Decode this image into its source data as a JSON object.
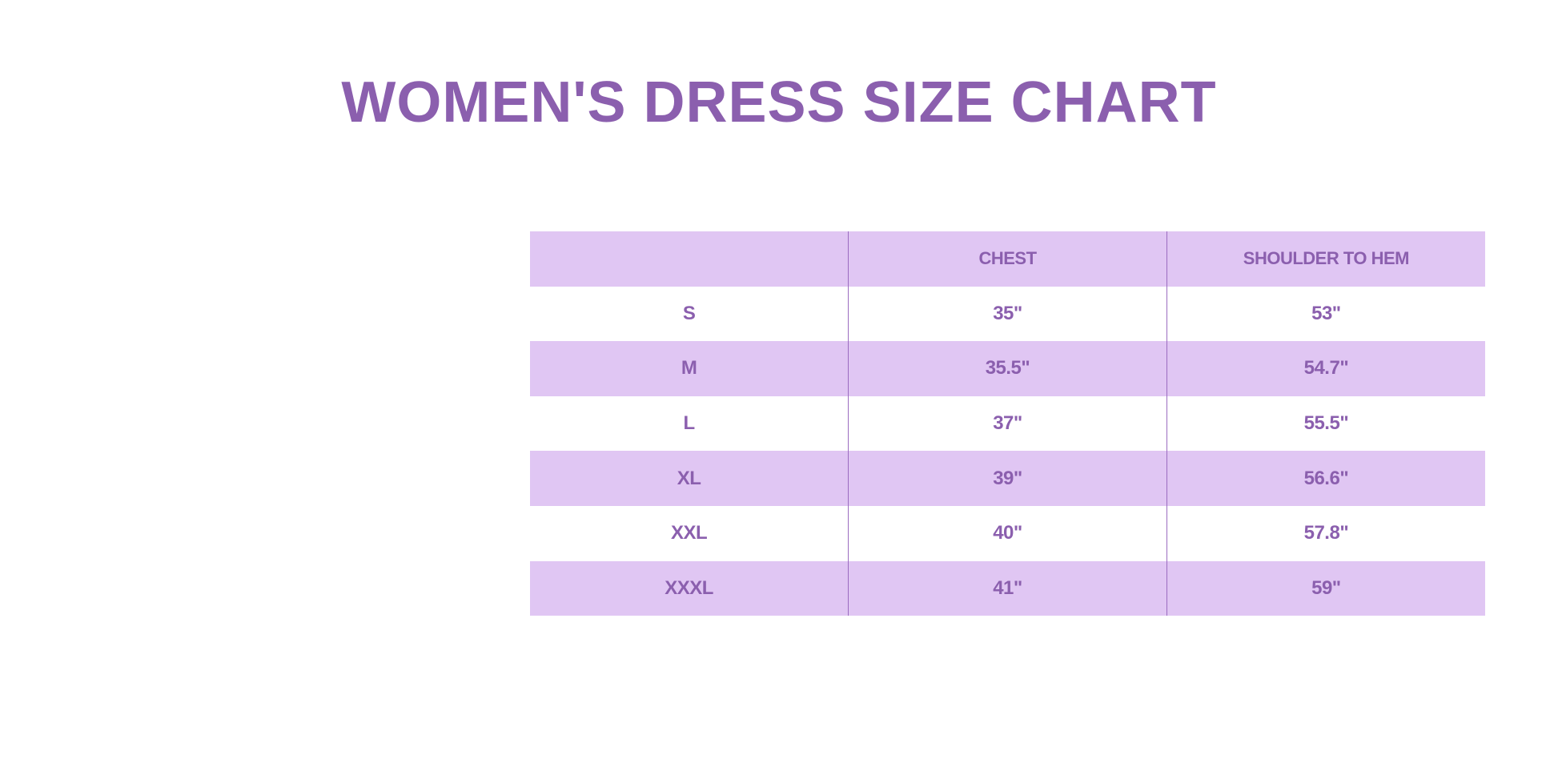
{
  "title": "Women's Dress Size Chart",
  "colors": {
    "text": "#8b5fae",
    "band": "#e0c6f3",
    "background": "#ffffff"
  },
  "table": {
    "headers": [
      "",
      "CHEST",
      "SHOULDER TO HEM"
    ],
    "rows": [
      [
        "S",
        "35\"",
        "53\""
      ],
      [
        "M",
        "35.5\"",
        "54.7\""
      ],
      [
        "L",
        "37\"",
        "55.5\""
      ],
      [
        "XL",
        "39\"",
        "56.6\""
      ],
      [
        "XXL",
        "40\"",
        "57.8\""
      ],
      [
        "XXXL",
        "41\"",
        "59\""
      ]
    ]
  }
}
